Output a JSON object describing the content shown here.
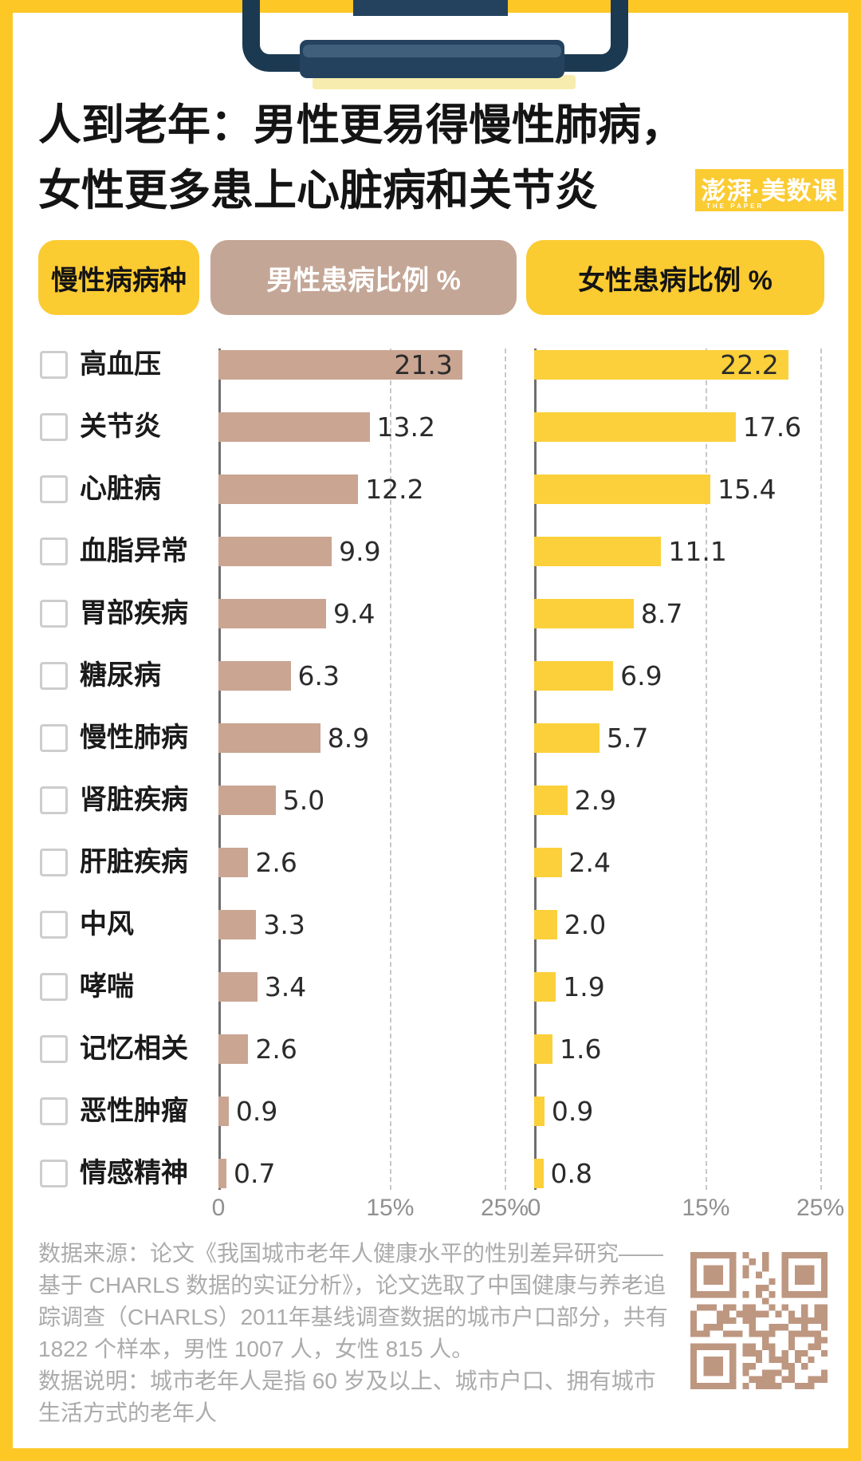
{
  "page": {
    "title_line1": "人到老年：男性更易得慢性肺病，",
    "title_line2": "女性更多患上心脏病和关节炎",
    "logo": {
      "text": "澎湃·美数课",
      "subtext": "THE PAPER"
    }
  },
  "columns": {
    "category": "慢性病病种",
    "male": "男性患病比例 %",
    "female": "女性患病比例 %"
  },
  "chart_data": {
    "type": "bar",
    "orientation": "horizontal",
    "unit": "%",
    "title": "人到老年：男性更易得慢性肺病，女性更多患上心脏病和关节炎",
    "categories": [
      "高血压",
      "关节炎",
      "心脏病",
      "血脂异常",
      "胃部疾病",
      "糖尿病",
      "慢性肺病",
      "肾脏疾病",
      "肝脏疾病",
      "中风",
      "哮喘",
      "记忆相关",
      "恶性肿瘤",
      "情感精神"
    ],
    "series": [
      {
        "name": "男性患病比例 %",
        "values": [
          21.3,
          13.2,
          12.2,
          9.9,
          9.4,
          6.3,
          8.9,
          5.0,
          2.6,
          3.3,
          3.4,
          2.6,
          0.9,
          0.7
        ],
        "labels": [
          "21.3",
          "13.2",
          "12.2",
          "9.9",
          "9.4",
          "6.3",
          "8.9",
          "5.0",
          "2.6",
          "3.3",
          "3.4",
          "2.6",
          "0.9",
          "0.7"
        ]
      },
      {
        "name": "女性患病比例 %",
        "values": [
          22.2,
          17.6,
          15.4,
          11.1,
          8.7,
          6.9,
          5.7,
          2.9,
          2.4,
          2.0,
          1.9,
          1.6,
          0.9,
          0.8
        ],
        "labels": [
          "22.2",
          "17.6",
          "15.4",
          "11.1",
          "8.7",
          "6.9",
          "5.7",
          "2.9",
          "2.4",
          "2.0",
          "1.9",
          "1.6",
          "0.9",
          "0.8"
        ]
      }
    ],
    "x_ticks": [
      "0",
      "15%",
      "25%"
    ],
    "x_tick_values": [
      0,
      15,
      25
    ],
    "xlim": [
      0,
      26
    ],
    "gridlines": "dashed vertical at 15% and 25%",
    "legend_position": "column header pills"
  },
  "footer": {
    "lines": [
      "数据来源：论文《我国城市老年人健康水平的性别差异研究——",
      "基于 CHARLS 数据的实证分析》，论文选取了中国健康与养老追",
      "踪调查（CHARLS）2011年基线调查数据的城市户口部分，共有",
      "1822 个样本，男性 1007 人，女性 815 人。",
      "数据说明：城市老年人是指 60 岁及以上、城市户口、拥有城市",
      "生活方式的老年人"
    ]
  },
  "colors": {
    "page_border_yellow": "#FDC726",
    "pill_yellow": "#FBCB32",
    "bar_yellow": "#FBD03A",
    "pill_tan": "#C4A696",
    "bar_tan": "#C9A592",
    "clip_navy": "#1B3A52",
    "clip_navy_light": "#3F5F7B",
    "clip_shadow": "#F7ECAE",
    "axis_gray": "#6F6F6F",
    "grid_gray": "#C8C8C8",
    "tick_gray": "#909090",
    "footer_gray": "#ABABAB",
    "qr_tan": "#BE9781"
  }
}
